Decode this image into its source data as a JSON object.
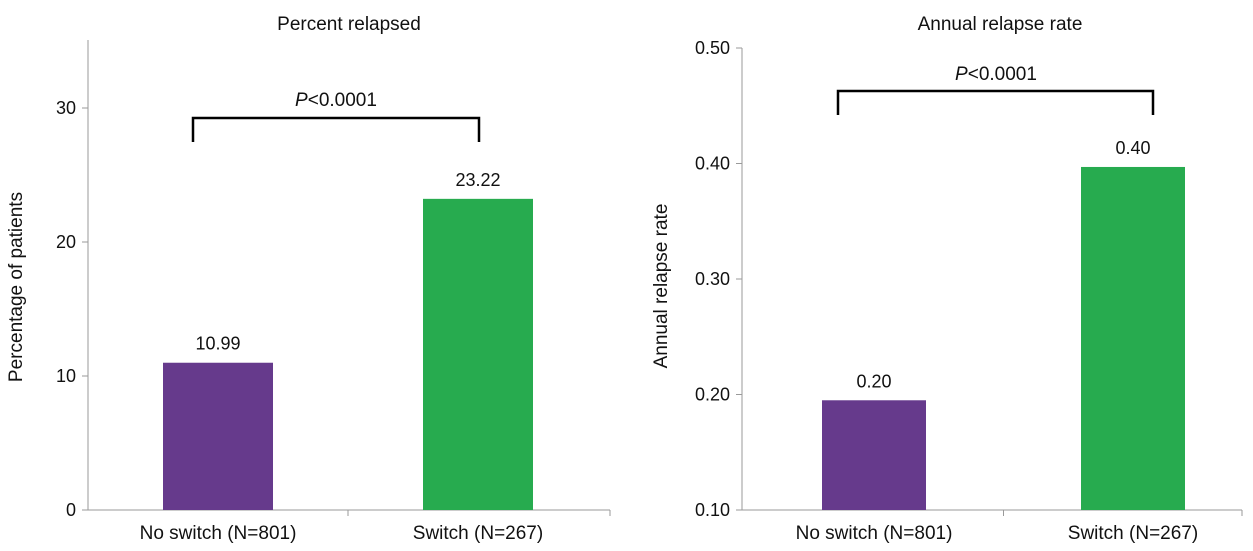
{
  "chart_data": [
    {
      "type": "bar",
      "title": "Percent relapsed",
      "xlabel": "",
      "ylabel": "Percentage of patients",
      "categories": [
        "No switch (N=801)",
        "Switch (N=267)"
      ],
      "values": [
        10.99,
        23.22
      ],
      "value_labels": [
        "10.99",
        "23.22"
      ],
      "colors": [
        "#663a8c",
        "#27ab4f"
      ],
      "ylim": [
        0,
        35
      ],
      "yticks": [
        0,
        10,
        20,
        30
      ],
      "ytick_labels": [
        "0",
        "10",
        "20",
        "30"
      ],
      "grid": false,
      "annotation": {
        "p_italic": "P",
        "p_rest": "<0.0001"
      }
    },
    {
      "type": "bar",
      "title": "Annual relapse rate",
      "xlabel": "",
      "ylabel": "Annual relapse rate",
      "categories": [
        "No switch (N=801)",
        "Switch (N=267)"
      ],
      "values": [
        0.195,
        0.397
      ],
      "value_labels": [
        "0.20",
        "0.40"
      ],
      "colors": [
        "#663a8c",
        "#27ab4f"
      ],
      "ylim": [
        0.1,
        0.5
      ],
      "yticks": [
        0.1,
        0.2,
        0.3,
        0.4,
        0.5
      ],
      "ytick_labels": [
        "0.10",
        "0.20",
        "0.30",
        "0.40",
        "0.50"
      ],
      "grid": false,
      "annotation": {
        "p_italic": "P",
        "p_rest": "<0.0001"
      }
    }
  ]
}
